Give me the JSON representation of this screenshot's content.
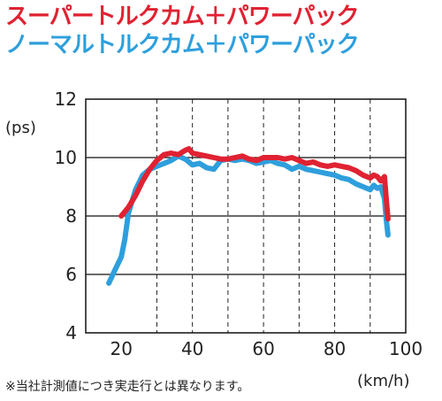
{
  "legend": {
    "series1": "スーパートルクカム＋パワーパック",
    "series2": "ノーマルトルクカム＋パワーパック"
  },
  "footnote": "※当社計測値につき実走行とは異なります。",
  "colors": {
    "series1": "#e02232",
    "series2": "#2e9fdc"
  },
  "chart_data": {
    "type": "line",
    "ylabel": "(ps)",
    "xlabel": "(km/h)",
    "xlim": [
      10,
      100
    ],
    "ylim": [
      4,
      12
    ],
    "xticks": [
      20,
      40,
      60,
      80,
      100
    ],
    "yticks": [
      4,
      6,
      8,
      10,
      12
    ],
    "grid": "vertical dashed every 10 km/h",
    "series": [
      {
        "name": "スーパートルクカム＋パワーパック",
        "x": [
          20,
          22,
          24,
          26,
          28,
          30,
          32,
          34,
          36,
          38,
          39,
          40,
          42,
          44,
          46,
          48,
          50,
          52,
          54,
          56,
          58,
          60,
          62,
          64,
          66,
          68,
          70,
          72,
          74,
          76,
          78,
          80,
          82,
          84,
          86,
          88,
          90,
          91,
          92,
          93,
          94,
          94.5,
          95
        ],
        "y": [
          8.0,
          8.3,
          8.7,
          9.2,
          9.6,
          9.9,
          10.1,
          10.15,
          10.1,
          10.25,
          10.3,
          10.15,
          10.1,
          10.05,
          10.0,
          9.95,
          9.95,
          10.0,
          10.05,
          9.95,
          9.9,
          10.0,
          10.0,
          10.0,
          9.95,
          10.0,
          9.9,
          9.8,
          9.85,
          9.75,
          9.7,
          9.75,
          9.7,
          9.65,
          9.55,
          9.4,
          9.3,
          9.4,
          9.35,
          9.2,
          9.35,
          8.6,
          7.9
        ]
      },
      {
        "name": "ノーマルトルクカム＋パワーパック",
        "x": [
          16.5,
          18,
          20,
          21,
          22,
          24,
          26,
          28,
          30,
          32,
          34,
          36,
          38,
          40,
          42,
          44,
          46,
          48,
          50,
          52,
          54,
          56,
          58,
          60,
          62,
          64,
          66,
          68,
          70,
          72,
          74,
          76,
          78,
          80,
          82,
          84,
          86,
          88,
          90,
          91,
          92,
          93,
          94,
          94.5,
          95
        ],
        "y": [
          5.7,
          6.1,
          6.6,
          7.2,
          8.1,
          8.9,
          9.4,
          9.6,
          9.7,
          9.8,
          9.9,
          10.05,
          9.95,
          9.75,
          9.8,
          9.65,
          9.6,
          9.9,
          9.95,
          9.9,
          9.95,
          9.9,
          9.8,
          9.85,
          9.9,
          9.8,
          9.75,
          9.6,
          9.7,
          9.6,
          9.55,
          9.5,
          9.45,
          9.4,
          9.3,
          9.25,
          9.1,
          9.0,
          8.9,
          9.05,
          8.95,
          9.0,
          8.6,
          7.9,
          7.35
        ]
      }
    ]
  }
}
